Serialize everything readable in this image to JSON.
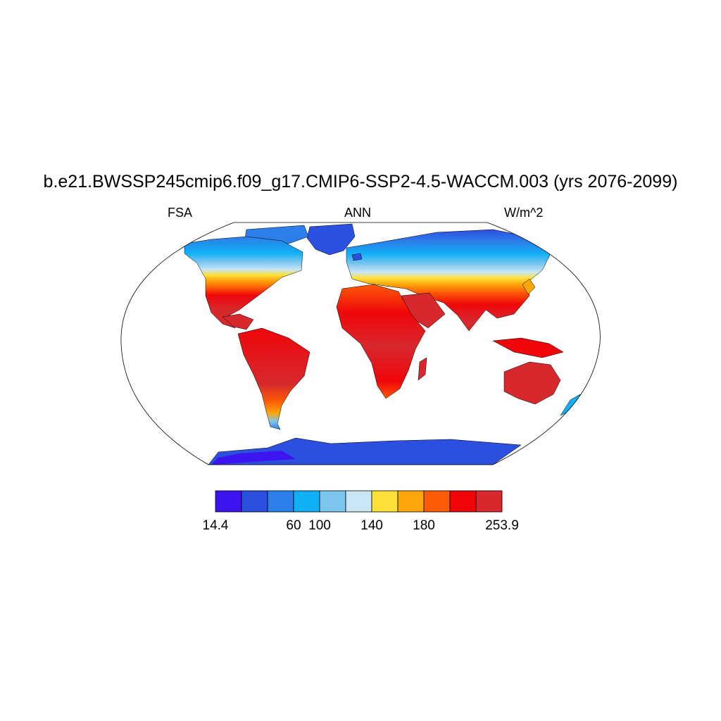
{
  "title": "b.e21.BWSSP245cmip6.f09_g17.CMIP6-SSP2-4.5-WACCM.003 (yrs 2076-2099)",
  "subtitle": {
    "left": "FSA",
    "center": "ANN",
    "right": "W/m^2"
  },
  "colorbar": {
    "colors": [
      "#3b14ef",
      "#2b4fde",
      "#2c7ee9",
      "#10b0f6",
      "#7cc6ee",
      "#c8e6f6",
      "#fee03a",
      "#fda60b",
      "#fd5b07",
      "#f0060a",
      "#d6282d"
    ],
    "labels": [
      "14.4",
      "60",
      "100",
      "140",
      "180",
      "253.9"
    ],
    "label_bins": [
      0,
      3,
      4,
      6,
      8,
      11
    ]
  },
  "chart_data": {
    "type": "map",
    "projection": "Robinson",
    "variable": "FSA",
    "season": "ANN",
    "units": "W/m^2",
    "range": [
      14.4,
      253.9
    ]
  }
}
